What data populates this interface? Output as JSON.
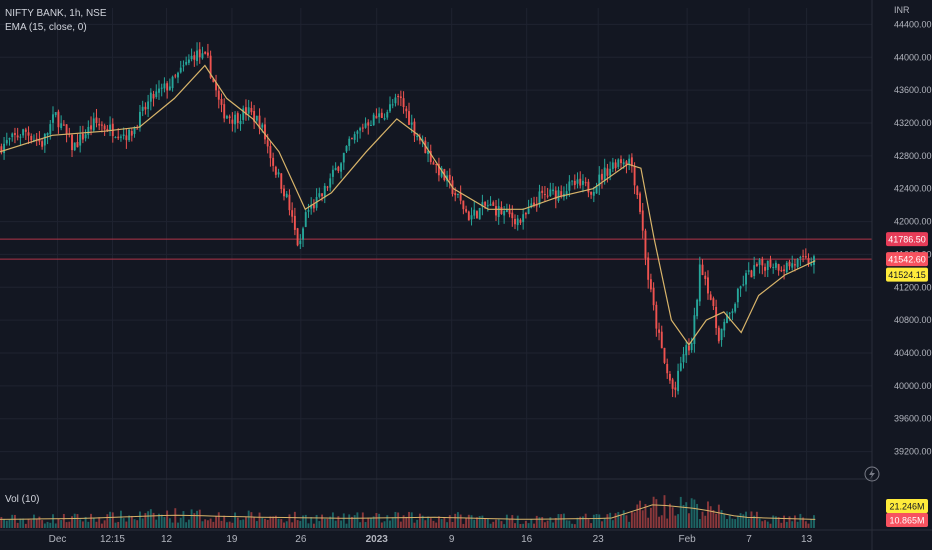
{
  "header": {
    "title": "NIFTY BANK, 1h, NSE",
    "indicator": "EMA (15, close, 0)",
    "volume_label": "Vol (10)",
    "currency": "INR"
  },
  "colors": {
    "background": "#131722",
    "up": "#26a69a",
    "down": "#ef5350",
    "ema": "#d8b46a",
    "grid": "#1f2330",
    "text": "#b2b5be",
    "level_line": "#b03448",
    "badge_red": "#e63c58",
    "badge_yellow": "#ffeb3b",
    "badge_orange": "#f7525f"
  },
  "chart_data": {
    "type": "candlestick",
    "title": "NIFTY BANK, 1h, NSE",
    "ylabel": "INR",
    "ylim": [
      39000,
      44600
    ],
    "grid": true,
    "y_ticks": [
      44400,
      44000,
      43600,
      43200,
      42800,
      42400,
      42000,
      41600,
      41200,
      40800,
      40400,
      40000,
      39600,
      39200
    ],
    "y_tick_labels": [
      "44400.00",
      "44000.00",
      "43600.00",
      "43200.00",
      "42800.00",
      "42400.00",
      "42000.00",
      "41600.00",
      "41200.00",
      "40800.00",
      "40400.00",
      "40000.00",
      "39600.00",
      "39200.00"
    ],
    "x_ticks": [
      {
        "label": "Dec",
        "pos": 0.066,
        "bold": false
      },
      {
        "label": "12:15",
        "pos": 0.129,
        "bold": false
      },
      {
        "label": "12",
        "pos": 0.191,
        "bold": false
      },
      {
        "label": "19",
        "pos": 0.266,
        "bold": false
      },
      {
        "label": "26",
        "pos": 0.345,
        "bold": false
      },
      {
        "label": "2023",
        "pos": 0.432,
        "bold": true
      },
      {
        "label": "9",
        "pos": 0.518,
        "bold": false
      },
      {
        "label": "16",
        "pos": 0.604,
        "bold": false
      },
      {
        "label": "23",
        "pos": 0.686,
        "bold": false
      },
      {
        "label": "Feb",
        "pos": 0.788,
        "bold": false
      },
      {
        "label": "7",
        "pos": 0.859,
        "bold": false
      },
      {
        "label": "13",
        "pos": 0.925,
        "bold": false
      }
    ],
    "horizontal_levels": [
      41786.5,
      41542.6
    ],
    "price_badges": [
      {
        "value": 41786.5,
        "label": "41786.50",
        "style": "red"
      },
      {
        "value": 41542.6,
        "label": "41542.60",
        "style": "orange"
      },
      {
        "value": 41524.15,
        "label": "41524.15",
        "style": "yellow"
      }
    ],
    "volume_badges": [
      {
        "label": "21.246M",
        "style": "yellow"
      },
      {
        "label": "10.865M",
        "style": "orange"
      }
    ],
    "price_path": [
      [
        0.0,
        42900
      ],
      [
        0.03,
        43100
      ],
      [
        0.05,
        42950
      ],
      [
        0.065,
        43300
      ],
      [
        0.085,
        42900
      ],
      [
        0.11,
        43200
      ],
      [
        0.135,
        43100
      ],
      [
        0.15,
        43050
      ],
      [
        0.175,
        43500
      ],
      [
        0.2,
        43700
      ],
      [
        0.225,
        44050
      ],
      [
        0.24,
        43950
      ],
      [
        0.255,
        43350
      ],
      [
        0.27,
        43250
      ],
      [
        0.285,
        43350
      ],
      [
        0.3,
        43200
      ],
      [
        0.315,
        42700
      ],
      [
        0.33,
        42300
      ],
      [
        0.345,
        41650
      ],
      [
        0.352,
        42100
      ],
      [
        0.37,
        42300
      ],
      [
        0.385,
        42600
      ],
      [
        0.4,
        42900
      ],
      [
        0.42,
        43200
      ],
      [
        0.44,
        43300
      ],
      [
        0.46,
        43500
      ],
      [
        0.475,
        43150
      ],
      [
        0.5,
        42700
      ],
      [
        0.52,
        42400
      ],
      [
        0.54,
        42050
      ],
      [
        0.56,
        42200
      ],
      [
        0.58,
        42100
      ],
      [
        0.6,
        42000
      ],
      [
        0.62,
        42300
      ],
      [
        0.64,
        42350
      ],
      [
        0.66,
        42450
      ],
      [
        0.68,
        42400
      ],
      [
        0.695,
        42600
      ],
      [
        0.71,
        42750
      ],
      [
        0.725,
        42750
      ],
      [
        0.735,
        42200
      ],
      [
        0.745,
        41300
      ],
      [
        0.755,
        40700
      ],
      [
        0.765,
        40200
      ],
      [
        0.775,
        39900
      ],
      [
        0.785,
        40400
      ],
      [
        0.795,
        40500
      ],
      [
        0.805,
        41500
      ],
      [
        0.815,
        41150
      ],
      [
        0.825,
        40600
      ],
      [
        0.84,
        40900
      ],
      [
        0.855,
        41300
      ],
      [
        0.87,
        41450
      ],
      [
        0.885,
        41500
      ],
      [
        0.9,
        41450
      ],
      [
        0.915,
        41500
      ],
      [
        0.935,
        41520
      ]
    ],
    "ema_path": [
      [
        0.0,
        42850
      ],
      [
        0.06,
        43050
      ],
      [
        0.12,
        43100
      ],
      [
        0.16,
        43150
      ],
      [
        0.2,
        43500
      ],
      [
        0.235,
        43900
      ],
      [
        0.26,
        43500
      ],
      [
        0.29,
        43250
      ],
      [
        0.32,
        42850
      ],
      [
        0.35,
        42150
      ],
      [
        0.38,
        42350
      ],
      [
        0.42,
        42850
      ],
      [
        0.455,
        43250
      ],
      [
        0.48,
        43050
      ],
      [
        0.52,
        42400
      ],
      [
        0.56,
        42150
      ],
      [
        0.6,
        42150
      ],
      [
        0.64,
        42300
      ],
      [
        0.68,
        42400
      ],
      [
        0.72,
        42700
      ],
      [
        0.735,
        42650
      ],
      [
        0.75,
        41800
      ],
      [
        0.77,
        40800
      ],
      [
        0.79,
        40500
      ],
      [
        0.81,
        40800
      ],
      [
        0.83,
        40900
      ],
      [
        0.85,
        40650
      ],
      [
        0.87,
        41100
      ],
      [
        0.9,
        41350
      ],
      [
        0.935,
        41524
      ]
    ],
    "volume_ylim": [
      0,
      40000000
    ],
    "volume_path": [
      [
        0.0,
        8000000
      ],
      [
        0.1,
        9000000
      ],
      [
        0.2,
        12000000
      ],
      [
        0.3,
        10000000
      ],
      [
        0.4,
        9000000
      ],
      [
        0.5,
        10000000
      ],
      [
        0.6,
        8000000
      ],
      [
        0.7,
        9000000
      ],
      [
        0.75,
        22000000
      ],
      [
        0.8,
        18000000
      ],
      [
        0.85,
        10000000
      ],
      [
        0.935,
        8000000
      ]
    ],
    "volume_ma_value": 21246000,
    "volume_last_value": 10865000,
    "candle_count": 300
  }
}
